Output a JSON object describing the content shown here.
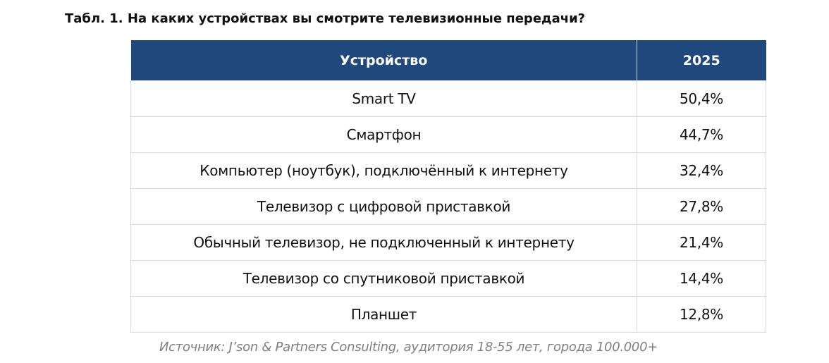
{
  "title": "Табл. 1. На каких устройствах вы смотрите телевизионные передачи?",
  "table": {
    "headers": [
      "Устройство",
      "2025"
    ],
    "rows": [
      [
        "Smart TV",
        "50,4%"
      ],
      [
        "Смартфон",
        "44,7%"
      ],
      [
        "Компьютер (ноутбук), подключённый к интернету",
        "32,4%"
      ],
      [
        "Телевизор с цифровой приставкой",
        "27,8%"
      ],
      [
        "Обычный телевизор, не подключенный к интернету",
        "21,4%"
      ],
      [
        "Телевизор со спутниковой приставкой",
        "14,4%"
      ],
      [
        "Планшет",
        "12,8%"
      ]
    ]
  },
  "source": "Источник: J’son & Partners Consulting, аудитория 18-55 лет, города 100.000+",
  "colors": {
    "header_bg": "#1f497d"
  }
}
